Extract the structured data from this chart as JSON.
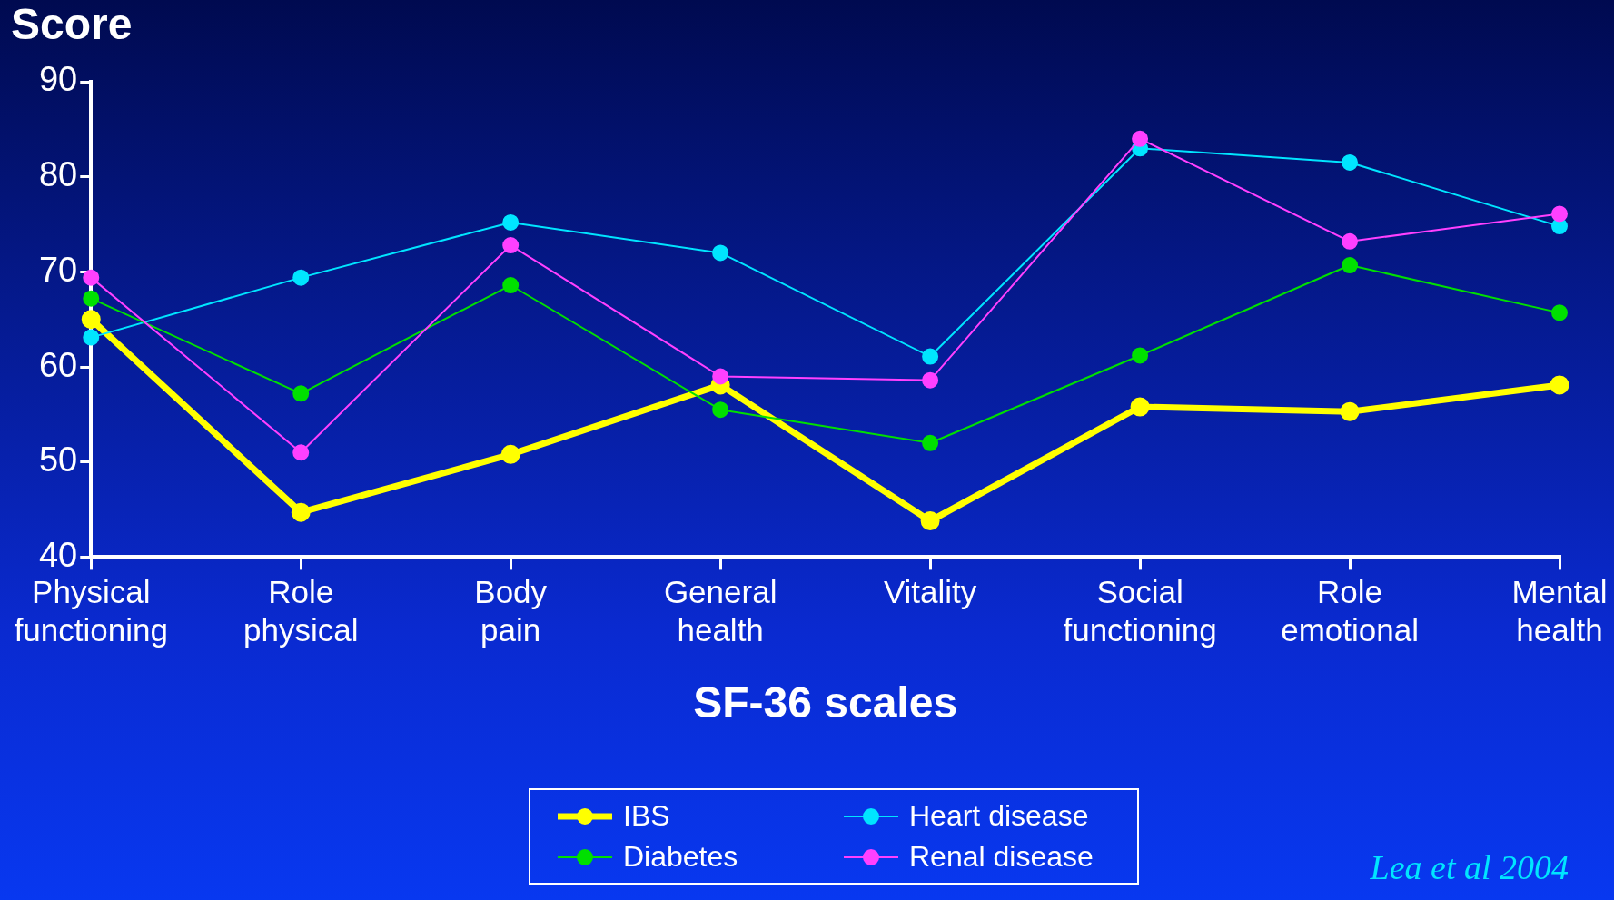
{
  "chart_data": {
    "type": "line",
    "ylabel": "Score",
    "xlabel": "SF-36 scales",
    "categories": [
      "Physical functioning",
      "Role physical",
      "Body pain",
      "General health",
      "Vitality",
      "Social functioning",
      "Role emotional",
      "Mental health"
    ],
    "ylim": [
      40,
      90
    ],
    "yticks": [
      40,
      50,
      60,
      70,
      80,
      90
    ],
    "grid": false,
    "legend": "bottom",
    "marker": "circle",
    "series": [
      {
        "name": "IBS",
        "color": "#ffff00",
        "values": [
          65.0,
          44.7,
          50.8,
          58.1,
          43.8,
          55.8,
          55.3,
          58.1
        ]
      },
      {
        "name": "Heart disease",
        "color": "#00e5ff",
        "values": [
          63.1,
          69.4,
          75.2,
          72.0,
          61.1,
          83.0,
          81.5,
          74.8
        ]
      },
      {
        "name": "Diabetes",
        "color": "#00e000",
        "values": [
          67.2,
          57.2,
          68.6,
          55.5,
          52.0,
          61.2,
          70.7,
          65.7
        ]
      },
      {
        "name": "Renal disease",
        "color": "#ff40ff",
        "values": [
          69.4,
          51.0,
          72.8,
          59.0,
          58.6,
          84.0,
          73.2,
          76.1
        ]
      }
    ],
    "annotations": [
      "Lea et al 2004"
    ]
  }
}
